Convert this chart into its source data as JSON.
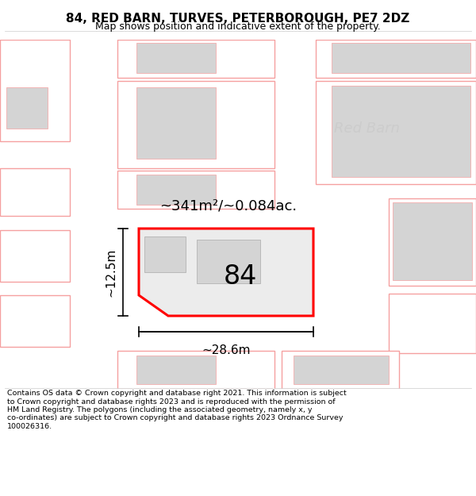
{
  "title": "84, RED BARN, TURVES, PETERBOROUGH, PE7 2DZ",
  "subtitle": "Map shows position and indicative extent of the property.",
  "footer": "Contains OS data © Crown copyright and database right 2021. This information is subject to Crown copyright and database rights 2023 and is reproduced with the permission of HM Land Registry. The polygons (including the associated geometry, namely x, y co-ordinates) are subject to Crown copyright and database rights 2023 Ordnance Survey 100026316.",
  "area_label": "~341m²/~0.084ac.",
  "width_label": "~28.6m",
  "height_label": "~12.5m",
  "number_label": "84",
  "place_label": "Red Barn",
  "bg_color": "#ffffff",
  "plot_fill": "#ececec",
  "plot_outline": "#ff0000",
  "other_outline": "#f5a0a0",
  "grey_fill": "#d4d4d4",
  "label_color": "#cccccc",
  "dim_color": "#000000",
  "text_color": "#000000"
}
